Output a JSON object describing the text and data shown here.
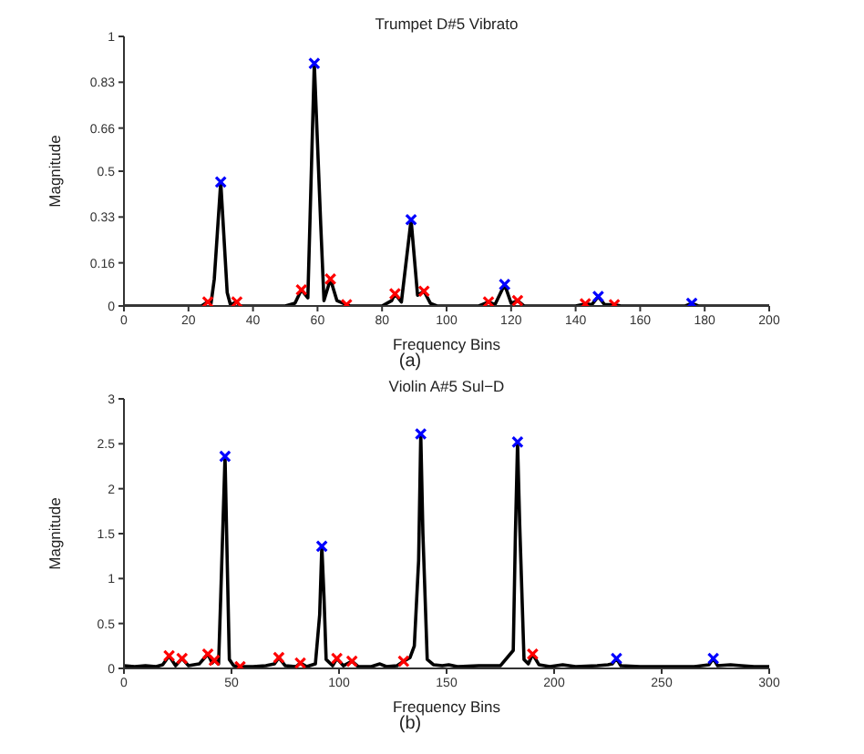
{
  "chart_data": [
    {
      "type": "line",
      "title": "Trumpet D#5 Vibrato",
      "xlabel": "Frequency Bins",
      "ylabel": "Magnitude",
      "annotations": [
        "(a)"
      ],
      "xlim": [
        0,
        200
      ],
      "xticks": [
        0,
        20,
        40,
        60,
        80,
        100,
        120,
        140,
        160,
        180,
        200
      ],
      "ylim": [
        0,
        1
      ],
      "yticks": [
        0,
        0.16,
        0.33,
        0.5,
        0.66,
        0.83,
        1
      ],
      "grid": false,
      "legend": false,
      "series": [
        {
          "color": "#000000",
          "marker": "none",
          "x": [
            0,
            24,
            26,
            27,
            28,
            30,
            32,
            33,
            35,
            36,
            50,
            53,
            55,
            57,
            59,
            61,
            62,
            64,
            66,
            69,
            70,
            80,
            83,
            84,
            86,
            89,
            91,
            93,
            95,
            97,
            110,
            113,
            115,
            118,
            120,
            122,
            124,
            140,
            143,
            145,
            147,
            149,
            152,
            154,
            174,
            176,
            178,
            200
          ],
          "values": [
            0,
            0,
            0.015,
            0.01,
            0.1,
            0.46,
            0.05,
            0.005,
            0.015,
            0,
            0,
            0.01,
            0.06,
            0.03,
            0.9,
            0.3,
            0.02,
            0.1,
            0.02,
            0.005,
            0,
            0,
            0.02,
            0.045,
            0.015,
            0.32,
            0.04,
            0.055,
            0.01,
            0,
            0,
            0.015,
            0.005,
            0.08,
            0.01,
            0.02,
            0,
            0,
            0.008,
            0.005,
            0.035,
            0.005,
            0.005,
            0,
            0,
            0.01,
            0,
            0
          ]
        },
        {
          "type": "scatter",
          "color": "#0000ff",
          "marker": "cross",
          "x": [
            30,
            59,
            89,
            118,
            147,
            176
          ],
          "values": [
            0.46,
            0.9,
            0.32,
            0.08,
            0.035,
            0.01
          ]
        },
        {
          "type": "scatter",
          "color": "#ff0000",
          "marker": "cross",
          "x": [
            26,
            35,
            55,
            64,
            69,
            84,
            93,
            113,
            122,
            143,
            152
          ],
          "values": [
            0.015,
            0.015,
            0.06,
            0.1,
            0.005,
            0.045,
            0.055,
            0.015,
            0.02,
            0.008,
            0.005
          ]
        }
      ]
    },
    {
      "type": "line",
      "title": "Violin A#5 Sul−D",
      "xlabel": "Frequency Bins",
      "ylabel": "Magnitude",
      "annotations": [
        "(b)"
      ],
      "xlim": [
        0,
        300
      ],
      "xticks": [
        0,
        50,
        100,
        150,
        200,
        250,
        300
      ],
      "ylim": [
        0,
        3
      ],
      "yticks": [
        0,
        0.5,
        1,
        1.5,
        2,
        2.5,
        3
      ],
      "grid": false,
      "legend": false,
      "series": [
        {
          "color": "#000000",
          "marker": "none",
          "x": [
            0,
            5,
            10,
            15,
            18,
            21,
            24,
            27,
            30,
            35,
            39,
            41,
            42,
            44,
            45,
            47,
            48,
            49,
            51,
            54,
            60,
            66,
            70,
            72,
            75,
            80,
            82,
            85,
            89,
            91,
            92,
            93,
            94,
            97,
            99,
            102,
            106,
            109,
            115,
            119,
            122,
            127,
            130,
            133,
            135,
            137,
            138,
            139,
            141,
            144,
            148,
            151,
            155,
            165,
            175,
            181,
            182,
            183,
            184,
            186,
            188,
            190,
            193,
            198,
            204,
            210,
            220,
            225,
            227,
            229,
            231,
            240,
            255,
            265,
            272,
            274,
            276,
            282,
            287,
            293,
            300
          ],
          "values": [
            0.03,
            0.02,
            0.03,
            0.02,
            0.04,
            0.14,
            0.03,
            0.11,
            0.03,
            0.05,
            0.16,
            0.06,
            0.09,
            0.05,
            0.8,
            2.36,
            1.2,
            0.1,
            0.03,
            0.02,
            0.02,
            0.03,
            0.05,
            0.12,
            0.03,
            0.02,
            0.06,
            0.02,
            0.05,
            0.6,
            1.36,
            0.8,
            0.1,
            0.03,
            0.11,
            0.03,
            0.08,
            0.02,
            0.02,
            0.05,
            0.02,
            0.03,
            0.08,
            0.12,
            0.25,
            1.2,
            2.61,
            1.5,
            0.1,
            0.04,
            0.03,
            0.04,
            0.02,
            0.03,
            0.03,
            0.2,
            1.5,
            2.52,
            1.6,
            0.1,
            0.05,
            0.16,
            0.04,
            0.02,
            0.04,
            0.02,
            0.03,
            0.04,
            0.05,
            0.11,
            0.03,
            0.02,
            0.02,
            0.02,
            0.04,
            0.11,
            0.03,
            0.04,
            0.03,
            0.02,
            0.02
          ]
        },
        {
          "type": "scatter",
          "color": "#0000ff",
          "marker": "cross",
          "x": [
            47,
            92,
            138,
            183,
            229,
            274
          ],
          "values": [
            2.36,
            1.36,
            2.61,
            2.52,
            0.11,
            0.11
          ]
        },
        {
          "type": "scatter",
          "color": "#ff0000",
          "marker": "cross",
          "x": [
            21,
            27,
            39,
            42,
            54,
            72,
            82,
            99,
            106,
            130,
            190
          ],
          "values": [
            0.14,
            0.11,
            0.16,
            0.09,
            0.02,
            0.12,
            0.06,
            0.11,
            0.08,
            0.08,
            0.16
          ]
        }
      ]
    }
  ]
}
